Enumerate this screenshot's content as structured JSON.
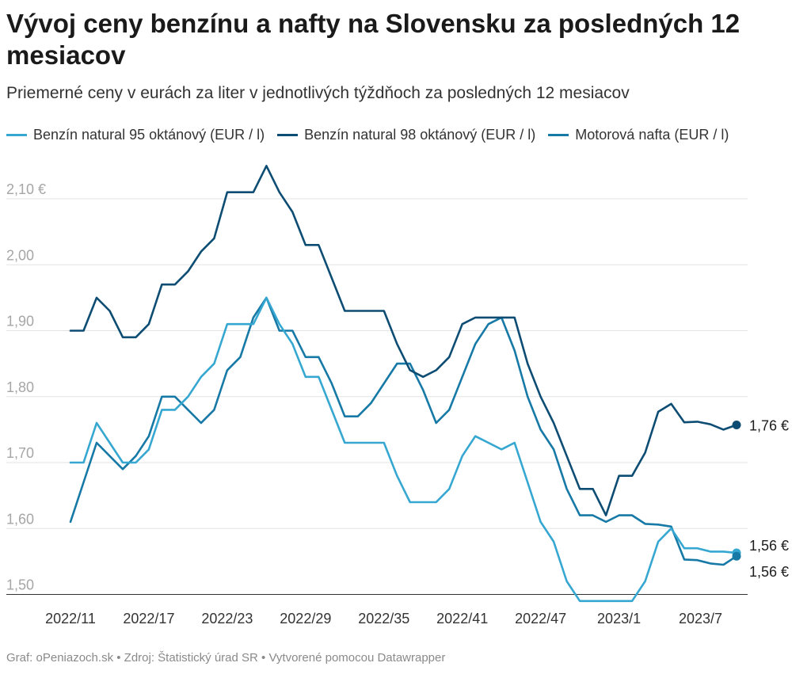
{
  "title": "Vývoj ceny benzínu a nafty na Slovensku za posledných 12 mesiacov",
  "subtitle": "Priemerné ceny v eurách za liter v jednotlivých týždňoch za posledných 12 mesiacov",
  "footer": "Graf: oPeniazoch.sk • Zdroj: Štatistický úrad SR • Vytvorené pomocou Datawrapper",
  "colors": {
    "b95": "#35a7d1",
    "b98": "#0e4d73",
    "nafta": "#1679a6",
    "grid": "#e3e3e3",
    "axis": "#333333",
    "ytick": "#a6a6a6"
  },
  "chart_data": {
    "type": "line",
    "title": "Vývoj ceny benzínu a nafty na Slovensku za posledných 12 mesiacov",
    "xlabel": "",
    "ylabel": "",
    "ylim": [
      1.5,
      2.15
    ],
    "yticks": [
      1.5,
      1.6,
      1.7,
      1.8,
      1.9,
      2.0,
      2.1
    ],
    "ytick_labels": [
      "1,50",
      "1,60",
      "1,70",
      "1,80",
      "1,90",
      "2,00",
      "2,10 €"
    ],
    "xticks": [
      0,
      6,
      12,
      18,
      24,
      30,
      36,
      42,
      48
    ],
    "xtick_labels": [
      "2022/11",
      "2022/17",
      "2022/23",
      "2022/29",
      "2022/35",
      "2022/41",
      "2022/47",
      "2023/1",
      "2023/7"
    ],
    "x_count": 52,
    "series": [
      {
        "key": "b95",
        "name": "Benzín natural 95 oktánový (EUR / l)",
        "end_label": "1,56 €",
        "values": [
          1.7,
          1.7,
          1.76,
          1.73,
          1.7,
          1.7,
          1.72,
          1.78,
          1.78,
          1.8,
          1.83,
          1.85,
          1.91,
          1.91,
          1.91,
          1.95,
          1.91,
          1.88,
          1.83,
          1.83,
          1.78,
          1.73,
          1.73,
          1.73,
          1.73,
          1.68,
          1.64,
          1.64,
          1.64,
          1.66,
          1.71,
          1.74,
          1.73,
          1.72,
          1.73,
          1.67,
          1.61,
          1.58,
          1.52,
          1.49,
          1.49,
          1.49,
          1.49,
          1.49,
          1.52,
          1.58,
          1.6,
          1.57,
          1.57,
          1.565,
          1.565,
          1.563
        ]
      },
      {
        "key": "b98",
        "name": "Benzín natural 98 oktánový (EUR / l)",
        "end_label": "1,76 €",
        "values": [
          1.9,
          1.9,
          1.95,
          1.93,
          1.89,
          1.89,
          1.91,
          1.97,
          1.97,
          1.99,
          2.02,
          2.04,
          2.11,
          2.11,
          2.11,
          2.15,
          2.11,
          2.08,
          2.03,
          2.03,
          1.98,
          1.93,
          1.93,
          1.93,
          1.93,
          1.88,
          1.84,
          1.83,
          1.84,
          1.86,
          1.91,
          1.92,
          1.92,
          1.92,
          1.92,
          1.85,
          1.8,
          1.76,
          1.71,
          1.66,
          1.66,
          1.62,
          1.68,
          1.68,
          1.715,
          1.777,
          1.789,
          1.761,
          1.762,
          1.758,
          1.75,
          1.757
        ]
      },
      {
        "key": "nafta",
        "name": "Motorová nafta (EUR / l)",
        "end_label": "1,56 €",
        "values": [
          1.61,
          1.67,
          1.73,
          1.71,
          1.69,
          1.71,
          1.74,
          1.8,
          1.8,
          1.78,
          1.76,
          1.78,
          1.84,
          1.86,
          1.92,
          1.95,
          1.9,
          1.9,
          1.86,
          1.86,
          1.82,
          1.77,
          1.77,
          1.79,
          1.82,
          1.85,
          1.85,
          1.81,
          1.76,
          1.78,
          1.83,
          1.88,
          1.91,
          1.92,
          1.87,
          1.8,
          1.75,
          1.72,
          1.66,
          1.62,
          1.62,
          1.61,
          1.62,
          1.62,
          1.607,
          1.606,
          1.603,
          1.553,
          1.552,
          1.547,
          1.545,
          1.558
        ]
      }
    ]
  }
}
